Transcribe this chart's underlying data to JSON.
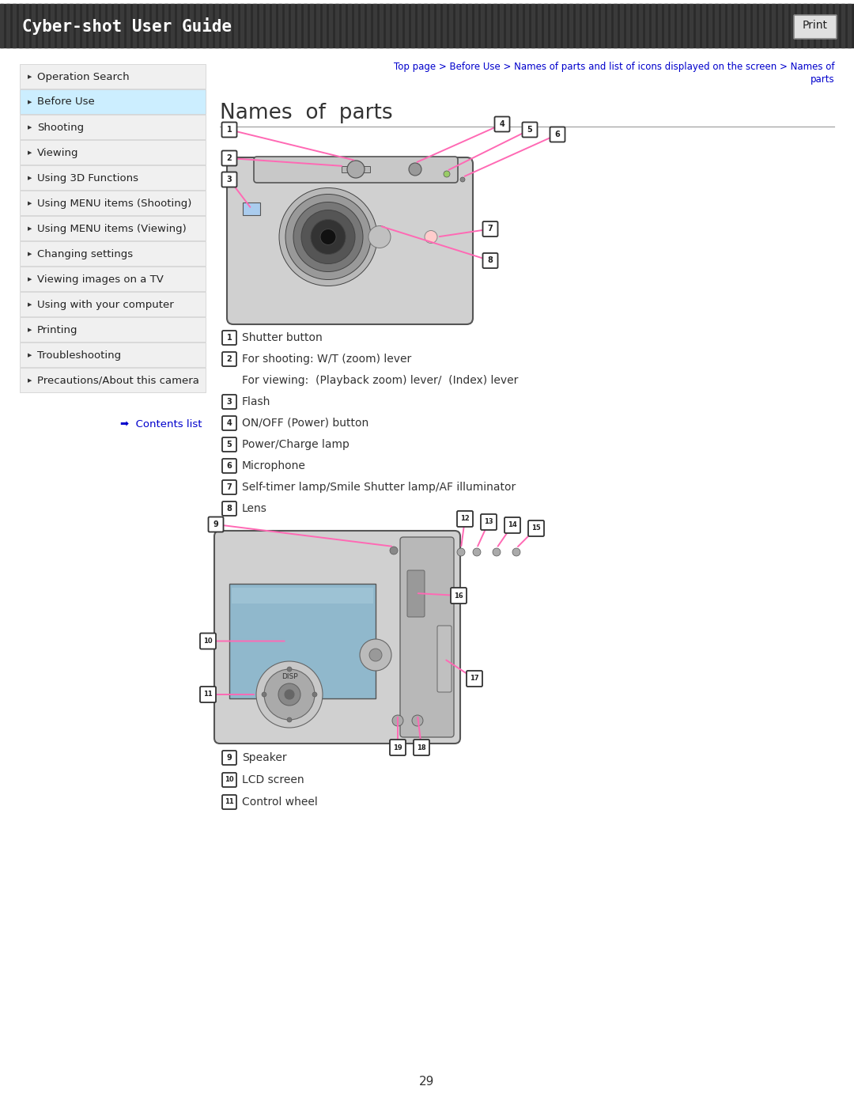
{
  "bg_color": "#ffffff",
  "header_bg": "#333333",
  "header_text": "Cyber-shot User Guide",
  "header_text_color": "#ffffff",
  "print_btn_text": "Print",
  "print_btn_bg": "#dddddd",
  "print_btn_border": "#888888",
  "breadcrumb_line1": "Top page > Before Use > Names of parts and list of icons displayed on the screen > Names of",
  "breadcrumb_line2": "parts",
  "breadcrumb_color": "#0000cc",
  "page_title": "Names  of  parts",
  "title_color": "#333333",
  "sidebar_bg": "#f0f0f0",
  "sidebar_selected_bg": "#cceeff",
  "sidebar_border": "#cccccc",
  "sidebar_items": [
    "Operation Search",
    "Before Use",
    "Shooting",
    "Viewing",
    "Using 3D Functions",
    "Using MENU items (Shooting)",
    "Using MENU items (Viewing)",
    "Changing settings",
    "Viewing images on a TV",
    "Using with your computer",
    "Printing",
    "Troubleshooting",
    "Precautions/About this camera"
  ],
  "sidebar_selected_index": 1,
  "contents_link_color": "#0000cc",
  "parts_list_1": [
    [
      "1",
      "Shutter button",
      false
    ],
    [
      "2",
      "For shooting: W/T (zoom) lever",
      false
    ],
    [
      "",
      "For viewing:  (Playback zoom) lever/  (Index) lever",
      true
    ],
    [
      "3",
      "Flash",
      false
    ],
    [
      "4",
      "ON/OFF (Power) button",
      false
    ],
    [
      "5",
      "Power/Charge lamp",
      false
    ],
    [
      "6",
      "Microphone",
      false
    ],
    [
      "7",
      "Self-timer lamp/Smile Shutter lamp/AF illuminator",
      false
    ],
    [
      "8",
      "Lens",
      false
    ]
  ],
  "parts_list_2": [
    [
      "9",
      "Speaker"
    ],
    [
      "10",
      "LCD screen"
    ],
    [
      "11",
      "Control wheel"
    ]
  ],
  "page_number": "29",
  "callout_color": "#ff69b4",
  "divider_color": "#999999"
}
